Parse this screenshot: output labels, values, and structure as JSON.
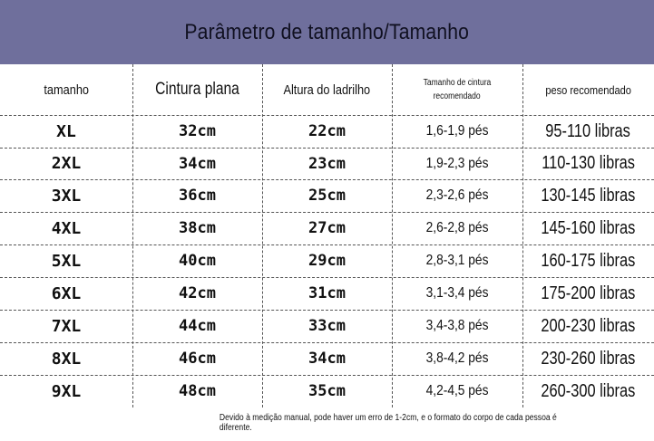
{
  "title": "Parâmetro de tamanho/Tamanho",
  "headers": {
    "size": "tamanho",
    "waist": "Cintura plana",
    "height": "Altura do ladrilho",
    "waist_size_line1": "Tamanho de cintura",
    "waist_size_line2": "recomendado",
    "weight": "peso recomendado"
  },
  "rows": [
    {
      "size": "XL",
      "waist": "32cm",
      "height": "22cm",
      "waist_ft": "1,6-1,9 pés",
      "weight": "95-110 libras"
    },
    {
      "size": "2XL",
      "waist": "34cm",
      "height": "23cm",
      "waist_ft": "1,9-2,3 pés",
      "weight": "110-130 libras"
    },
    {
      "size": "3XL",
      "waist": "36cm",
      "height": "25cm",
      "waist_ft": "2,3-2,6 pés",
      "weight": "130-145 libras"
    },
    {
      "size": "4XL",
      "waist": "38cm",
      "height": "27cm",
      "waist_ft": "2,6-2,8 pés",
      "weight": "145-160 libras"
    },
    {
      "size": "5XL",
      "waist": "40cm",
      "height": "29cm",
      "waist_ft": "2,8-3,1 pés",
      "weight": "160-175 libras"
    },
    {
      "size": "6XL",
      "waist": "42cm",
      "height": "31cm",
      "waist_ft": "3,1-3,4 pés",
      "weight": "175-200 libras"
    },
    {
      "size": "7XL",
      "waist": "44cm",
      "height": "33cm",
      "waist_ft": "3,4-3,8 pés",
      "weight": "200-230 libras"
    },
    {
      "size": "8XL",
      "waist": "46cm",
      "height": "34cm",
      "waist_ft": "3,8-4,2 pés",
      "weight": "230-260 libras"
    },
    {
      "size": "9XL",
      "waist": "48cm",
      "height": "35cm",
      "waist_ft": "4,2-4,5 pés",
      "weight": "260-300 libras"
    }
  ],
  "footnote": "Devido à medição manual, pode haver um erro de 1-2cm, e o formato do corpo de cada pessoa é diferente.",
  "colors": {
    "title_bar": "#6f6f9c"
  }
}
